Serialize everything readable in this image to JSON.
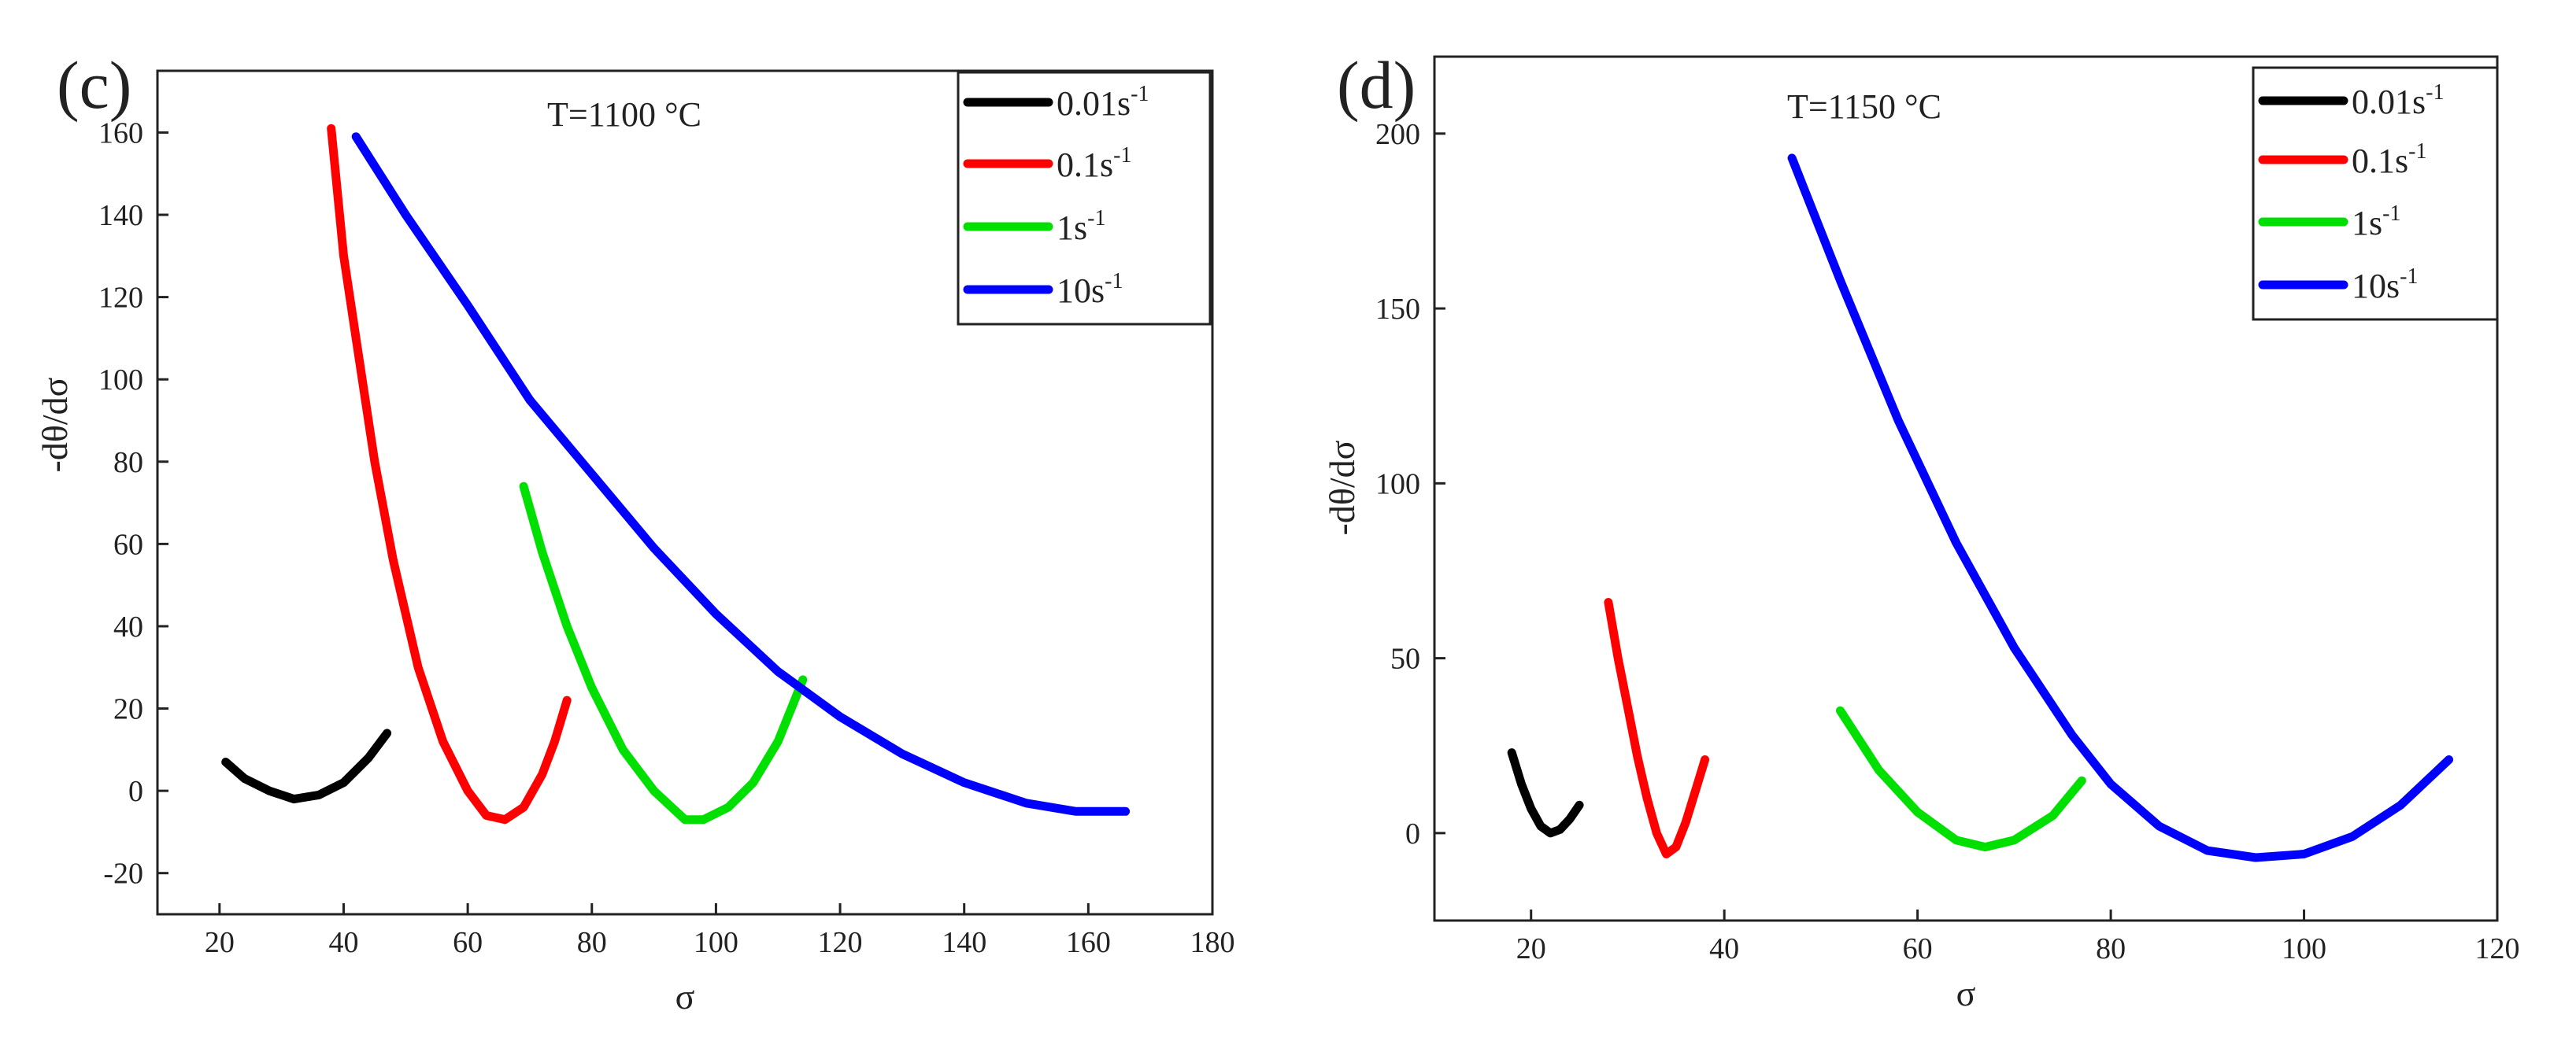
{
  "chart_data": [
    {
      "type": "line",
      "panel_label": "(c)",
      "annotation": "T=1100 °C",
      "xlabel": "σ",
      "ylabel": "-dθ/dσ",
      "xlim": [
        10,
        180
      ],
      "ylim": [
        -30,
        175
      ],
      "xticks": [
        20,
        40,
        60,
        80,
        100,
        120,
        140,
        160,
        180
      ],
      "yticks": [
        -20,
        0,
        20,
        40,
        60,
        80,
        100,
        120,
        140,
        160
      ],
      "legend_position": "top-right",
      "grid": false,
      "series": [
        {
          "name": "0.01s-1",
          "label_base": "0.01s",
          "label_sup": "-1",
          "color": "#000000",
          "x": [
            21,
            24,
            28,
            32,
            36,
            40,
            44,
            47
          ],
          "y": [
            7,
            3,
            0,
            -2,
            -1,
            2,
            8,
            14
          ]
        },
        {
          "name": "0.1s-1",
          "label_base": "0.1s",
          "label_sup": "-1",
          "color": "#ff0000",
          "x": [
            38,
            40,
            42,
            45,
            48,
            52,
            56,
            60,
            63,
            66,
            69,
            72,
            74,
            76
          ],
          "y": [
            161,
            130,
            110,
            80,
            56,
            30,
            12,
            0,
            -6,
            -7,
            -4,
            4,
            12,
            22
          ]
        },
        {
          "name": "1s-1",
          "label_base": "1s",
          "label_sup": "-1",
          "color": "#00e000",
          "x": [
            69,
            72,
            76,
            80,
            85,
            90,
            95,
            98,
            102,
            106,
            110,
            114
          ],
          "y": [
            74,
            58,
            40,
            25,
            10,
            0,
            -7,
            -7,
            -4,
            2,
            12,
            27
          ]
        },
        {
          "name": "10s-1",
          "label_base": "10s",
          "label_sup": "-1",
          "color": "#0000ff",
          "x": [
            42,
            50,
            60,
            70,
            80,
            90,
            100,
            110,
            120,
            130,
            140,
            150,
            158,
            166
          ],
          "y": [
            159,
            140,
            118,
            95,
            77,
            59,
            43,
            29,
            18,
            9,
            2,
            -3,
            -5,
            -5
          ]
        }
      ]
    },
    {
      "type": "line",
      "panel_label": "(d)",
      "annotation": "T=1150 °C",
      "xlabel": "σ",
      "ylabel": "-dθ/dσ",
      "xlim": [
        10,
        120
      ],
      "ylim": [
        -25,
        222
      ],
      "xticks": [
        20,
        40,
        60,
        80,
        100,
        120
      ],
      "yticks": [
        0,
        50,
        100,
        150,
        200
      ],
      "legend_position": "top-right",
      "grid": false,
      "series": [
        {
          "name": "0.01s-1",
          "label_base": "0.01s",
          "label_sup": "-1",
          "color": "#000000",
          "x": [
            18,
            19,
            20,
            21,
            22,
            23,
            24,
            25
          ],
          "y": [
            23,
            14,
            7,
            2,
            0,
            1,
            4,
            8
          ]
        },
        {
          "name": "0.1s-1",
          "label_base": "0.1s",
          "label_sup": "-1",
          "color": "#ff0000",
          "x": [
            28,
            29,
            30,
            31,
            32,
            33,
            34,
            35,
            36,
            37,
            38
          ],
          "y": [
            66,
            50,
            36,
            22,
            10,
            0,
            -6,
            -4,
            3,
            12,
            21
          ]
        },
        {
          "name": "1s-1",
          "label_base": "1s",
          "label_sup": "-1",
          "color": "#00e000",
          "x": [
            52,
            56,
            60,
            64,
            67,
            70,
            74,
            77
          ],
          "y": [
            35,
            18,
            6,
            -2,
            -4,
            -2,
            5,
            15
          ]
        },
        {
          "name": "10s-1",
          "label_base": "10s",
          "label_sup": "-1",
          "color": "#0000ff",
          "x": [
            47,
            52,
            58,
            64,
            70,
            76,
            80,
            85,
            90,
            95,
            100,
            105,
            110,
            115
          ],
          "y": [
            193,
            158,
            118,
            83,
            53,
            28,
            14,
            2,
            -5,
            -7,
            -6,
            -1,
            8,
            21
          ]
        }
      ]
    }
  ]
}
